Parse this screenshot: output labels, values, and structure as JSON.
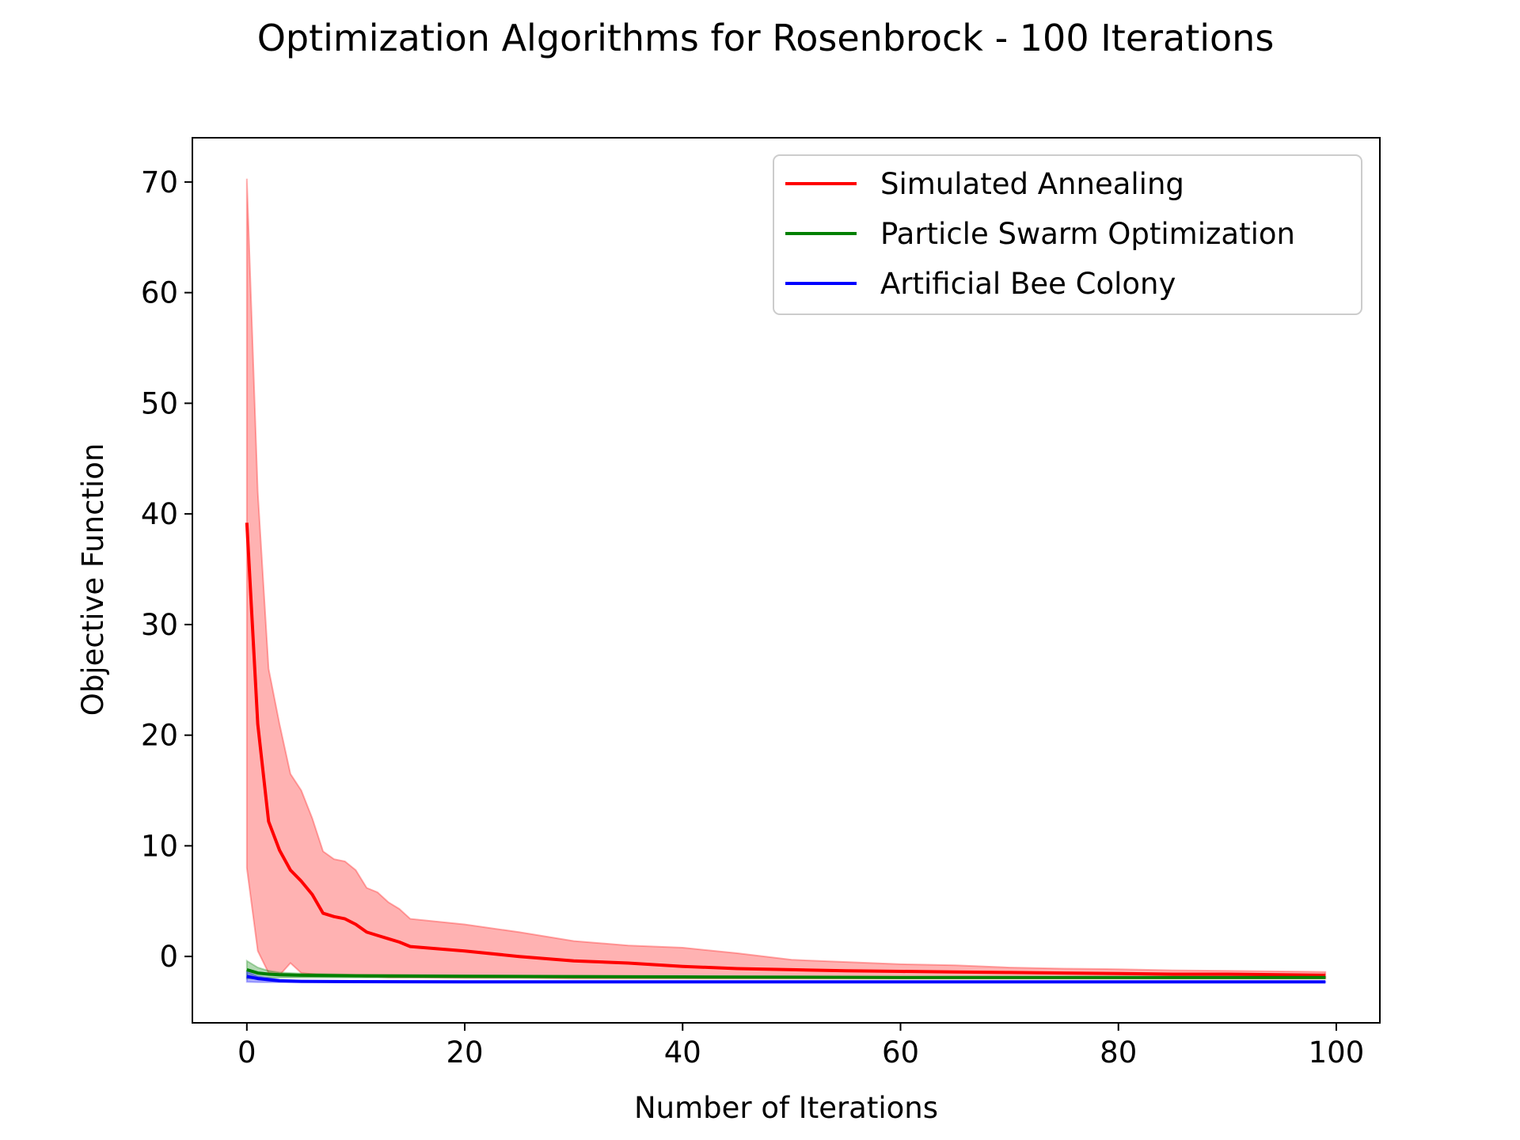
{
  "chart_data": {
    "type": "line",
    "title": "Optimization Algorithms for Rosenbrock - 100 Iterations",
    "xlabel": "Number of Iterations",
    "ylabel": "Objective Function",
    "xlim": [
      -5,
      104
    ],
    "ylim": [
      -6,
      74
    ],
    "xticks": [
      0,
      20,
      40,
      60,
      80,
      100
    ],
    "yticks": [
      0,
      10,
      20,
      30,
      40,
      50,
      60,
      70
    ],
    "legend": {
      "location": "top-right"
    },
    "grid": false,
    "series": [
      {
        "name": "Simulated Annealing",
        "color": "#ff0000",
        "band_color": "#ff0000",
        "band_opacity": 0.3,
        "x": [
          0,
          1,
          2,
          3,
          4,
          5,
          6,
          7,
          8,
          9,
          10,
          11,
          12,
          13,
          14,
          15,
          20,
          25,
          30,
          35,
          40,
          45,
          50,
          55,
          60,
          65,
          70,
          75,
          80,
          85,
          90,
          95,
          99
        ],
        "mean": [
          39.2,
          21.0,
          12.2,
          9.6,
          7.8,
          6.8,
          5.6,
          3.9,
          3.6,
          3.4,
          2.9,
          2.2,
          1.9,
          1.6,
          1.3,
          0.9,
          0.5,
          0.0,
          -0.4,
          -0.6,
          -0.9,
          -1.1,
          -1.2,
          -1.3,
          -1.35,
          -1.4,
          -1.45,
          -1.5,
          -1.55,
          -1.6,
          -1.6,
          -1.65,
          -1.7
        ],
        "upper": [
          70.3,
          42.0,
          26.0,
          21.0,
          16.5,
          15.0,
          12.5,
          9.5,
          8.8,
          8.6,
          7.8,
          6.2,
          5.8,
          4.9,
          4.3,
          3.4,
          2.9,
          2.2,
          1.4,
          1.0,
          0.8,
          0.3,
          -0.3,
          -0.5,
          -0.7,
          -0.8,
          -1.0,
          -1.1,
          -1.15,
          -1.25,
          -1.3,
          -1.35,
          -1.4
        ],
        "lower": [
          8.0,
          0.5,
          -1.5,
          -1.7,
          -0.6,
          -1.5,
          -1.6,
          -1.7,
          -1.75,
          -1.8,
          -1.8,
          -1.85,
          -1.85,
          -1.9,
          -1.9,
          -1.9,
          -1.95,
          -1.95,
          -2.0,
          -2.0,
          -2.0,
          -2.0,
          -2.0,
          -2.0,
          -2.0,
          -2.0,
          -2.0,
          -2.0,
          -2.0,
          -2.0,
          -2.0,
          -2.0,
          -2.0
        ]
      },
      {
        "name": "Particle Swarm Optimization",
        "color": "#008000",
        "band_color": "#008000",
        "band_opacity": 0.3,
        "x": [
          0,
          1,
          2,
          3,
          5,
          10,
          20,
          40,
          60,
          80,
          99
        ],
        "mean": [
          -1.2,
          -1.5,
          -1.6,
          -1.65,
          -1.7,
          -1.75,
          -1.8,
          -1.85,
          -1.9,
          -1.9,
          -1.9
        ],
        "upper": [
          -0.4,
          -1.0,
          -1.3,
          -1.45,
          -1.55,
          -1.65,
          -1.7,
          -1.8,
          -1.85,
          -1.85,
          -1.85
        ],
        "lower": [
          -2.0,
          -2.0,
          -1.95,
          -1.9,
          -1.9,
          -1.9,
          -1.9,
          -1.95,
          -1.95,
          -1.95,
          -1.95
        ]
      },
      {
        "name": "Artificial Bee Colony",
        "color": "#0000ff",
        "band_color": "#0000ff",
        "band_opacity": 0.3,
        "x": [
          0,
          1,
          2,
          3,
          5,
          10,
          20,
          40,
          60,
          80,
          99
        ],
        "mean": [
          -1.8,
          -2.0,
          -2.1,
          -2.2,
          -2.25,
          -2.28,
          -2.3,
          -2.3,
          -2.3,
          -2.3,
          -2.3
        ],
        "upper": [
          -1.4,
          -1.8,
          -1.95,
          -2.1,
          -2.2,
          -2.25,
          -2.27,
          -2.28,
          -2.28,
          -2.28,
          -2.28
        ],
        "lower": [
          -2.3,
          -2.32,
          -2.33,
          -2.33,
          -2.33,
          -2.33,
          -2.33,
          -2.33,
          -2.33,
          -2.33,
          -2.33
        ]
      }
    ]
  }
}
